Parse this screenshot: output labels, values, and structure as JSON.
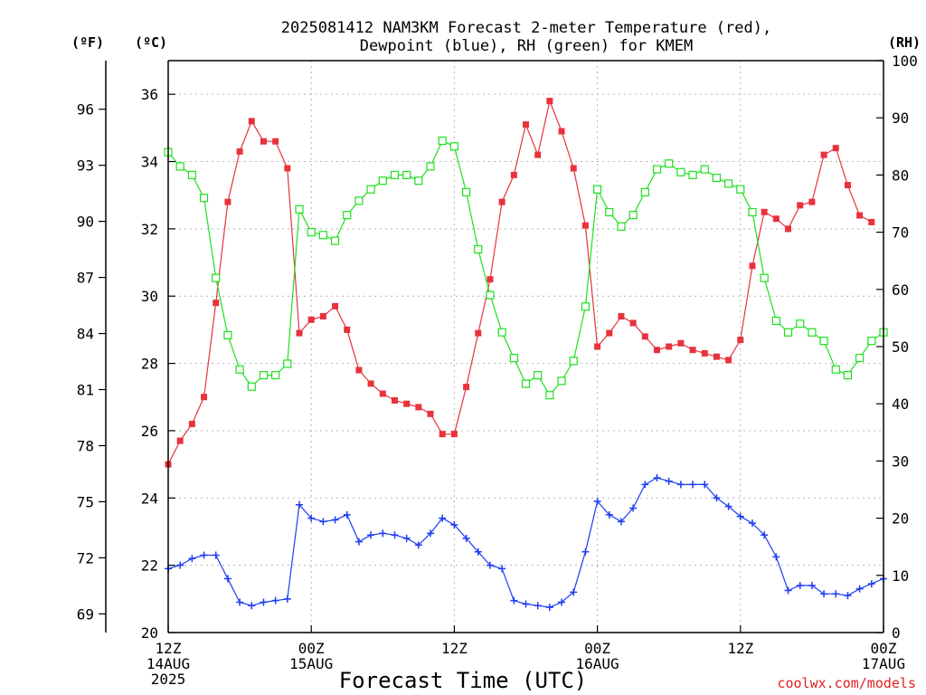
{
  "title_line1": "2025081412 NAM3KM Forecast 2-meter Temperature (red),",
  "title_line2": "Dewpoint (blue), RH (green) for KMEM",
  "unit_f": "(ºF)",
  "unit_c": "(ºC)",
  "unit_rh": "(RH)",
  "credit": "coolwx.com/models",
  "chart_data": {
    "type": "line",
    "xlabel": "Forecast Time (UTC)",
    "x_ticks": [
      {
        "hour": 0,
        "lines": [
          "12Z",
          "14AUG",
          "2025"
        ]
      },
      {
        "hour": 12,
        "lines": [
          "00Z",
          "15AUG"
        ]
      },
      {
        "hour": 24,
        "lines": [
          "12Z"
        ]
      },
      {
        "hour": 36,
        "lines": [
          "00Z",
          "16AUG"
        ]
      },
      {
        "hour": 48,
        "lines": [
          "12Z"
        ]
      },
      {
        "hour": 60,
        "lines": [
          "00Z",
          "17AUG"
        ]
      }
    ],
    "x_start": "2025-08-14 12Z",
    "x_end": "2025-08-17 00Z",
    "x_hours": [
      0,
      1,
      2,
      3,
      4,
      5,
      6,
      7,
      8,
      9,
      10,
      11,
      12,
      13,
      14,
      15,
      16,
      17,
      18,
      19,
      20,
      21,
      22,
      23,
      24,
      25,
      26,
      27,
      28,
      29,
      30,
      31,
      32,
      33,
      34,
      35,
      36,
      37,
      38,
      39,
      40,
      41,
      42,
      43,
      44,
      45,
      46,
      47,
      48,
      49,
      50,
      51,
      52,
      53,
      54,
      55,
      56,
      57,
      58,
      59,
      60
    ],
    "y_left_c": {
      "range": [
        20,
        37
      ],
      "ticks": [
        20,
        22,
        24,
        26,
        28,
        30,
        32,
        34,
        36
      ]
    },
    "y_left_f": {
      "ticks": [
        69,
        72,
        75,
        78,
        81,
        84,
        87,
        90,
        93,
        96
      ]
    },
    "y_right_rh": {
      "range": [
        0,
        100
      ],
      "ticks": [
        0,
        10,
        20,
        30,
        40,
        50,
        60,
        70,
        80,
        90,
        100
      ]
    },
    "grid": true,
    "series": [
      {
        "name": "Temperature",
        "color": "#e8323c",
        "marker": "filled-square",
        "axis": "C",
        "values": [
          25.0,
          25.7,
          26.2,
          27.0,
          29.8,
          32.8,
          34.3,
          35.2,
          34.6,
          34.6,
          33.8,
          28.9,
          29.3,
          29.4,
          29.7,
          29.0,
          27.8,
          27.4,
          27.1,
          26.9,
          26.8,
          26.7,
          26.5,
          25.9,
          25.9,
          27.3,
          28.9,
          30.5,
          32.8,
          33.6,
          35.1,
          34.2,
          35.8,
          34.9,
          33.8,
          32.1,
          28.5,
          28.9,
          29.4,
          29.2,
          28.8,
          28.4,
          28.5,
          28.6,
          28.4,
          28.3,
          28.2,
          28.1,
          28.7,
          30.9,
          32.5,
          32.3,
          32.0,
          32.7,
          32.8,
          34.2,
          34.4,
          33.3,
          32.4,
          32.2,
          null
        ]
      },
      {
        "name": "Dewpoint",
        "color": "#1e3cf0",
        "marker": "plus",
        "axis": "C",
        "values": [
          21.9,
          22.0,
          22.2,
          22.3,
          22.3,
          21.6,
          20.9,
          20.8,
          20.9,
          20.95,
          21.0,
          23.8,
          23.4,
          23.3,
          23.35,
          23.5,
          22.7,
          22.9,
          22.95,
          22.9,
          22.8,
          22.6,
          22.95,
          23.4,
          23.2,
          22.8,
          22.4,
          22.0,
          21.9,
          20.95,
          20.85,
          20.8,
          20.75,
          20.9,
          21.2,
          22.4,
          23.9,
          23.5,
          23.3,
          23.7,
          24.4,
          24.6,
          24.5,
          24.4,
          24.4,
          24.4,
          24.0,
          23.75,
          23.45,
          23.25,
          22.9,
          22.25,
          21.25,
          21.4,
          21.4,
          21.15,
          21.15,
          21.1,
          21.3,
          21.45,
          21.6
        ]
      },
      {
        "name": "RH",
        "color": "#1ee01e",
        "marker": "open-square",
        "axis": "RH",
        "values": [
          84,
          81.5,
          80,
          76,
          62,
          52,
          46,
          43,
          45,
          45,
          47,
          74,
          70,
          69.5,
          68.5,
          73,
          75.5,
          77.5,
          79,
          80,
          80,
          79,
          81.5,
          86,
          85,
          77,
          67,
          59,
          52.5,
          48,
          43.5,
          45,
          41.5,
          44,
          47.5,
          57,
          77.5,
          73.5,
          71,
          73,
          77,
          81,
          82,
          80.5,
          80,
          81,
          79.5,
          78.5,
          77.5,
          73.5,
          62,
          54.5,
          52.5,
          54,
          52.5,
          51,
          46,
          45,
          48,
          51,
          52.5
        ]
      }
    ]
  }
}
